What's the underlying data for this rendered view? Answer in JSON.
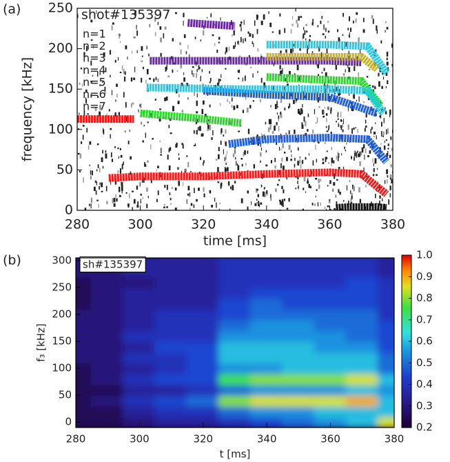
{
  "chart_data": [
    {
      "type": "line",
      "panel_label": "(a)",
      "annotation": "shot#135397",
      "x_label": "time [ms]",
      "y_label": "frequency [kHz]",
      "xlim": [
        280,
        380
      ],
      "xticks": [
        280,
        300,
        320,
        340,
        360,
        380
      ],
      "ylim": [
        0,
        250
      ],
      "yticks": [
        0,
        50,
        100,
        150,
        200,
        250
      ],
      "series": [
        {
          "name": "n=1",
          "color": "#111111",
          "x": [
            362,
            366,
            370,
            375,
            378
          ],
          "values": [
            3,
            4,
            4,
            4,
            3
          ]
        },
        {
          "name": "n=2",
          "color": "#ee1c1c",
          "x": [
            280,
            290,
            298,
            299,
            290,
            300,
            320,
            340,
            360,
            370,
            378
          ],
          "values": [
            113,
            113,
            113,
            null,
            40,
            42,
            42,
            45,
            47,
            45,
            20
          ]
        },
        {
          "name": "n=3",
          "color": "#22dd22",
          "x": [
            300,
            315,
            332,
            334,
            340,
            355,
            370,
            376
          ],
          "values": [
            120,
            115,
            108,
            null,
            165,
            162,
            160,
            130
          ]
        },
        {
          "name": "n=4",
          "color": "#1f5fe0",
          "x": [
            328,
            340,
            360,
            372,
            378,
            379,
            320,
            340,
            360,
            375
          ],
          "values": [
            82,
            88,
            90,
            88,
            60,
            null,
            148,
            143,
            140,
            120
          ]
        },
        {
          "name": "n=5",
          "color": "#22ccee",
          "x": [
            302,
            330,
            360,
            372,
            377,
            378,
            340,
            360,
            372,
            378
          ],
          "values": [
            152,
            150,
            150,
            148,
            120,
            null,
            205,
            205,
            203,
            170
          ]
        },
        {
          "name": "n=6",
          "color": "#6a2aa0",
          "x": [
            303,
            330,
            360,
            370,
            372,
            315,
            322,
            330
          ],
          "values": [
            185,
            185,
            185,
            183,
            null,
            232,
            230,
            228
          ]
        },
        {
          "name": "n=7",
          "color": "#c8b420",
          "x": [
            340,
            355,
            370,
            375
          ],
          "values": [
            190,
            190,
            190,
            175
          ]
        }
      ]
    },
    {
      "type": "heatmap",
      "panel_label": "(b)",
      "annotation": "sh#135397",
      "x_label": "t [ms]",
      "y_label": "f₃ [kHz]",
      "xlim": [
        280,
        380
      ],
      "xticks": [
        280,
        300,
        320,
        340,
        360,
        380
      ],
      "ylim": [
        -10,
        305
      ],
      "yticks": [
        0,
        50,
        100,
        150,
        200,
        250,
        300
      ],
      "zlim": [
        0.2,
        1.0
      ],
      "zticks": [
        0.2,
        0.3,
        0.4,
        0.5,
        0.6,
        0.7,
        0.8,
        0.9,
        {
          "value": 1,
          "label": "1.0"
        }
      ],
      "x": [
        280,
        290,
        300,
        310,
        320,
        330,
        340,
        350,
        360,
        370,
        380
      ],
      "y": [
        0,
        20,
        40,
        60,
        80,
        100,
        120,
        140,
        160,
        180,
        200,
        220,
        240,
        260,
        280,
        300
      ],
      "z": [
        [
          0.25,
          0.25,
          0.3,
          0.35,
          0.35,
          0.4,
          0.45,
          0.5,
          0.55,
          0.6,
          0.85
        ],
        [
          0.25,
          0.25,
          0.35,
          0.4,
          0.4,
          0.5,
          0.55,
          0.55,
          0.6,
          0.6,
          0.6
        ],
        [
          0.25,
          0.3,
          0.4,
          0.45,
          0.5,
          0.8,
          0.85,
          0.85,
          0.85,
          0.9,
          0.6
        ],
        [
          0.25,
          0.25,
          0.35,
          0.35,
          0.4,
          0.5,
          0.55,
          0.55,
          0.55,
          0.6,
          0.55
        ],
        [
          0.25,
          0.3,
          0.4,
          0.45,
          0.45,
          0.75,
          0.8,
          0.8,
          0.8,
          0.85,
          0.6
        ],
        [
          0.25,
          0.3,
          0.35,
          0.4,
          0.45,
          0.55,
          0.55,
          0.6,
          0.6,
          0.6,
          0.5
        ],
        [
          0.3,
          0.3,
          0.4,
          0.4,
          0.45,
          0.6,
          0.6,
          0.6,
          0.6,
          0.6,
          0.5
        ],
        [
          0.3,
          0.3,
          0.35,
          0.45,
          0.45,
          0.6,
          0.6,
          0.6,
          0.55,
          0.55,
          0.45
        ],
        [
          0.3,
          0.3,
          0.4,
          0.4,
          0.4,
          0.55,
          0.55,
          0.55,
          0.55,
          0.5,
          0.45
        ],
        [
          0.3,
          0.3,
          0.35,
          0.4,
          0.4,
          0.5,
          0.55,
          0.55,
          0.5,
          0.5,
          0.45
        ],
        [
          0.3,
          0.3,
          0.35,
          0.4,
          0.4,
          0.45,
          0.5,
          0.5,
          0.5,
          0.5,
          0.4
        ],
        [
          0.25,
          0.3,
          0.35,
          0.35,
          0.35,
          0.45,
          0.5,
          0.45,
          0.45,
          0.45,
          0.4
        ],
        [
          0.25,
          0.3,
          0.35,
          0.35,
          0.35,
          0.4,
          0.45,
          0.45,
          0.45,
          0.45,
          0.4
        ],
        [
          0.25,
          0.3,
          0.3,
          0.35,
          0.35,
          0.4,
          0.4,
          0.4,
          0.4,
          0.45,
          0.4
        ],
        [
          0.3,
          0.3,
          0.35,
          0.35,
          0.35,
          0.4,
          0.4,
          0.4,
          0.4,
          0.4,
          0.35
        ],
        [
          0.3,
          0.3,
          0.35,
          0.35,
          0.35,
          0.4,
          0.4,
          0.4,
          0.4,
          0.4,
          0.35
        ]
      ]
    }
  ]
}
